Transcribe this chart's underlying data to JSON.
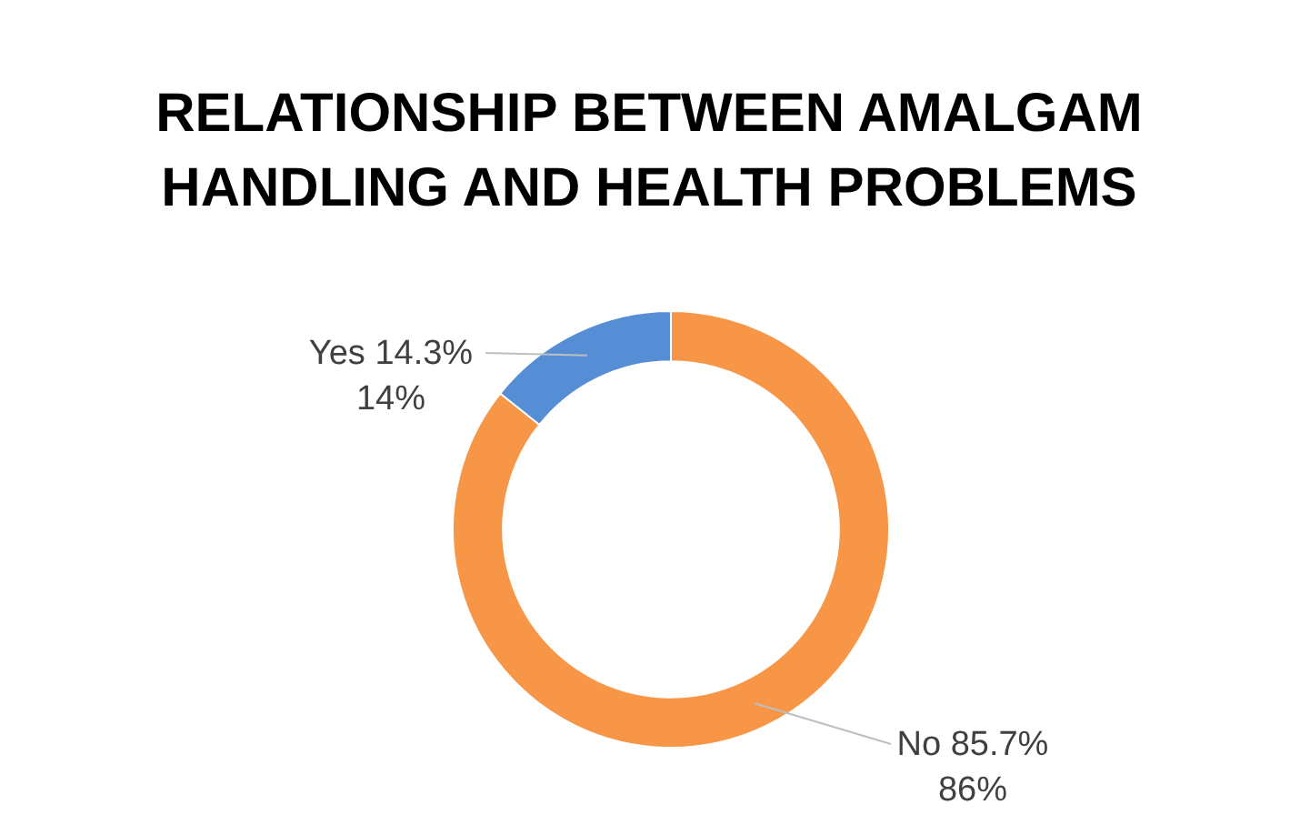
{
  "chart_data": {
    "type": "donut",
    "title": "RELATIONSHIP BETWEEN AMALGAM HANDLING AND HEALTH PROBLEMS",
    "categories": [
      "No 85.7%",
      "Yes 14.3%"
    ],
    "values": [
      85.7,
      14.3
    ],
    "colors": [
      "#f79646",
      "#558ed5"
    ],
    "value_labels": [
      "86%",
      "14%"
    ],
    "legend": false
  }
}
